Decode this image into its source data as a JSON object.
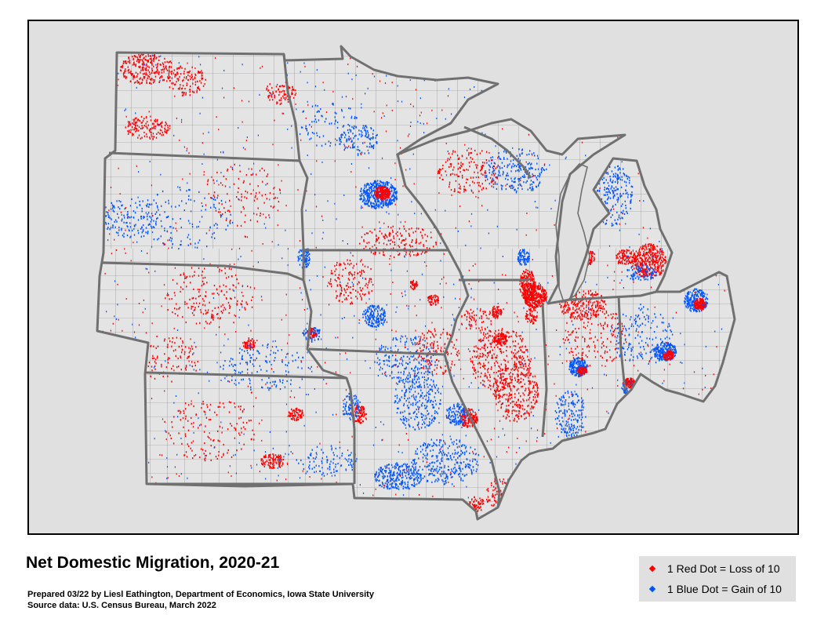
{
  "title": "Net Domestic Migration, 2020-21",
  "credit": {
    "prepared": "Prepared 03/22 by Liesl Eathington, Department of Economics, Iowa State University",
    "source": "Source data:  U.S. Census Bureau, March 2022"
  },
  "legend": {
    "items": [
      {
        "label": "1 Red Dot = Loss of 10",
        "color": "#ff0000",
        "icon": "red-dot-icon"
      },
      {
        "label": "1 Blue Dot = Gain of 10",
        "color": "#0055ff",
        "icon": "blue-dot-icon"
      }
    ]
  },
  "colors": {
    "background": "#e0e0e0",
    "state_border": "#707070",
    "county_border": "#7a7a7a",
    "loss": "#ff0000",
    "gain": "#0055ff"
  }
}
